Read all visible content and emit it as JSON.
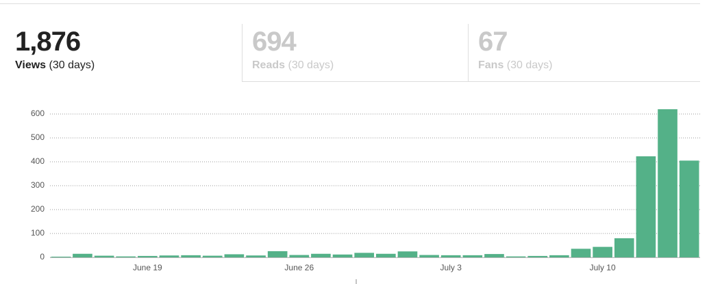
{
  "tabs": [
    {
      "value": "1,876",
      "label": "Views",
      "period": "(30 days)"
    },
    {
      "value": "694",
      "label": "Reads",
      "period": "(30 days)"
    },
    {
      "value": "67",
      "label": "Fans",
      "period": "(30 days)"
    }
  ],
  "chart_data": {
    "type": "bar",
    "categories": [
      null,
      null,
      null,
      null,
      "June 19",
      null,
      null,
      null,
      null,
      null,
      null,
      "June 26",
      null,
      null,
      null,
      null,
      null,
      null,
      "July 3",
      null,
      null,
      null,
      null,
      null,
      null,
      "July 10",
      null,
      null,
      null,
      null
    ],
    "values": [
      3,
      15,
      7,
      4,
      6,
      8,
      9,
      7,
      13,
      8,
      26,
      10,
      15,
      12,
      19,
      15,
      25,
      10,
      9,
      9,
      14,
      4,
      6,
      9,
      36,
      44,
      80,
      423,
      620,
      405
    ],
    "color": "#54b188",
    "ylim": [
      0,
      600
    ],
    "yticks": [
      0,
      100,
      200,
      300,
      400,
      500,
      600
    ],
    "grid": true
  }
}
